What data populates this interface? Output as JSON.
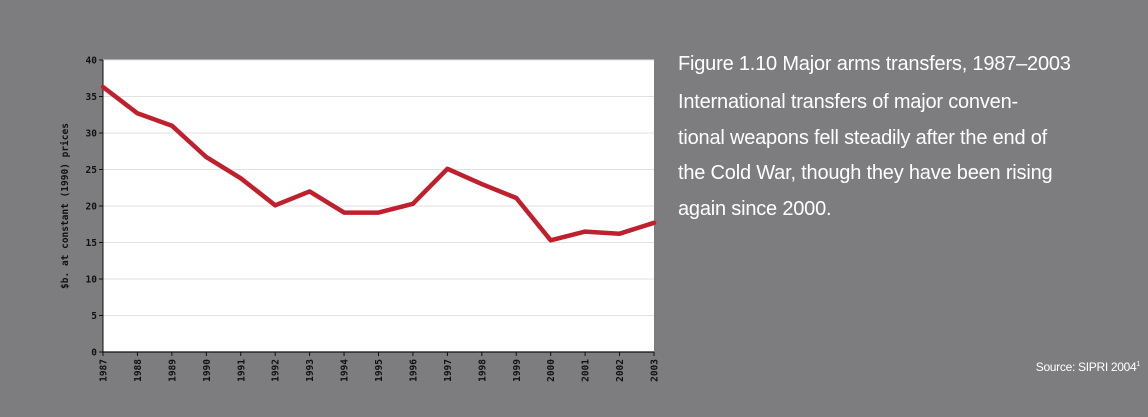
{
  "figure": {
    "title": "Figure 1.10 Major arms transfers, 1987–2003",
    "description": "International transfers of major conven-tional weapons fell steadily after the end of the Cold War, though they have been rising again since 2000.",
    "description_lines": [
      "International transfers of major conven-",
      "tional weapons fell steadily after the end of",
      "the Cold War, though they have been rising",
      "again since 2000."
    ],
    "source_label": "Source: SIPRI 2004",
    "source_note": "1"
  },
  "colors": {
    "background": "#7d7d7f",
    "plot_background": "#ffffff",
    "line": "#c0202e",
    "grid": "#e2e2e2",
    "axis_text": "#111111"
  },
  "chart_data": {
    "type": "line",
    "x": [
      1987,
      1988,
      1989,
      1990,
      1991,
      1992,
      1993,
      1994,
      1995,
      1996,
      1997,
      1998,
      1999,
      2000,
      2001,
      2002,
      2003
    ],
    "series": [
      {
        "values": [
          36.3,
          32.7,
          31.0,
          26.7,
          23.8,
          20.1,
          22.0,
          19.1,
          19.1,
          20.3,
          25.1,
          23.0,
          21.1,
          15.3,
          16.5,
          16.2,
          17.7
        ]
      }
    ],
    "ylabel": "$b. at constant (1990) prices",
    "xlabel": "",
    "title": "",
    "ylim": [
      0,
      40
    ],
    "yticks": [
      0,
      5,
      10,
      15,
      20,
      25,
      30,
      35,
      40
    ],
    "xtick_labels": [
      "1987",
      "1988",
      "1989",
      "1990",
      "1991",
      "1992",
      "1993",
      "1994",
      "1995",
      "1996",
      "1997",
      "1998",
      "1999",
      "2000",
      "2001",
      "2002",
      "2003"
    ],
    "grid": true,
    "legend": "none"
  }
}
